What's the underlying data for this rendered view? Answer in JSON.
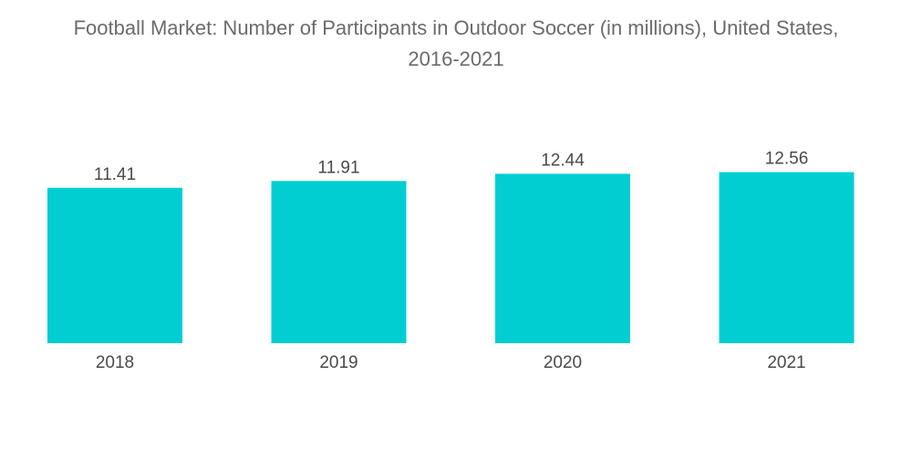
{
  "title_line1": "Football Market: Number of Participants in Outdoor Soccer (in millions), United States,",
  "title_line2": "2016-2021",
  "colors": {
    "bar": "#00CED1",
    "text": "#4a4a4a",
    "title": "#6b6b6b"
  },
  "chart_data": {
    "type": "bar",
    "title": "Football Market: Number of Participants in Outdoor Soccer (in millions), United States, 2016-2021",
    "categories": [
      "2018",
      "2019",
      "2020",
      "2021"
    ],
    "values": [
      11.41,
      11.91,
      12.44,
      12.56
    ],
    "data_labels": [
      "11.41",
      "11.91",
      "12.44",
      "12.56"
    ],
    "xlabel": "",
    "ylabel": "",
    "grid": false,
    "legend": "none"
  }
}
